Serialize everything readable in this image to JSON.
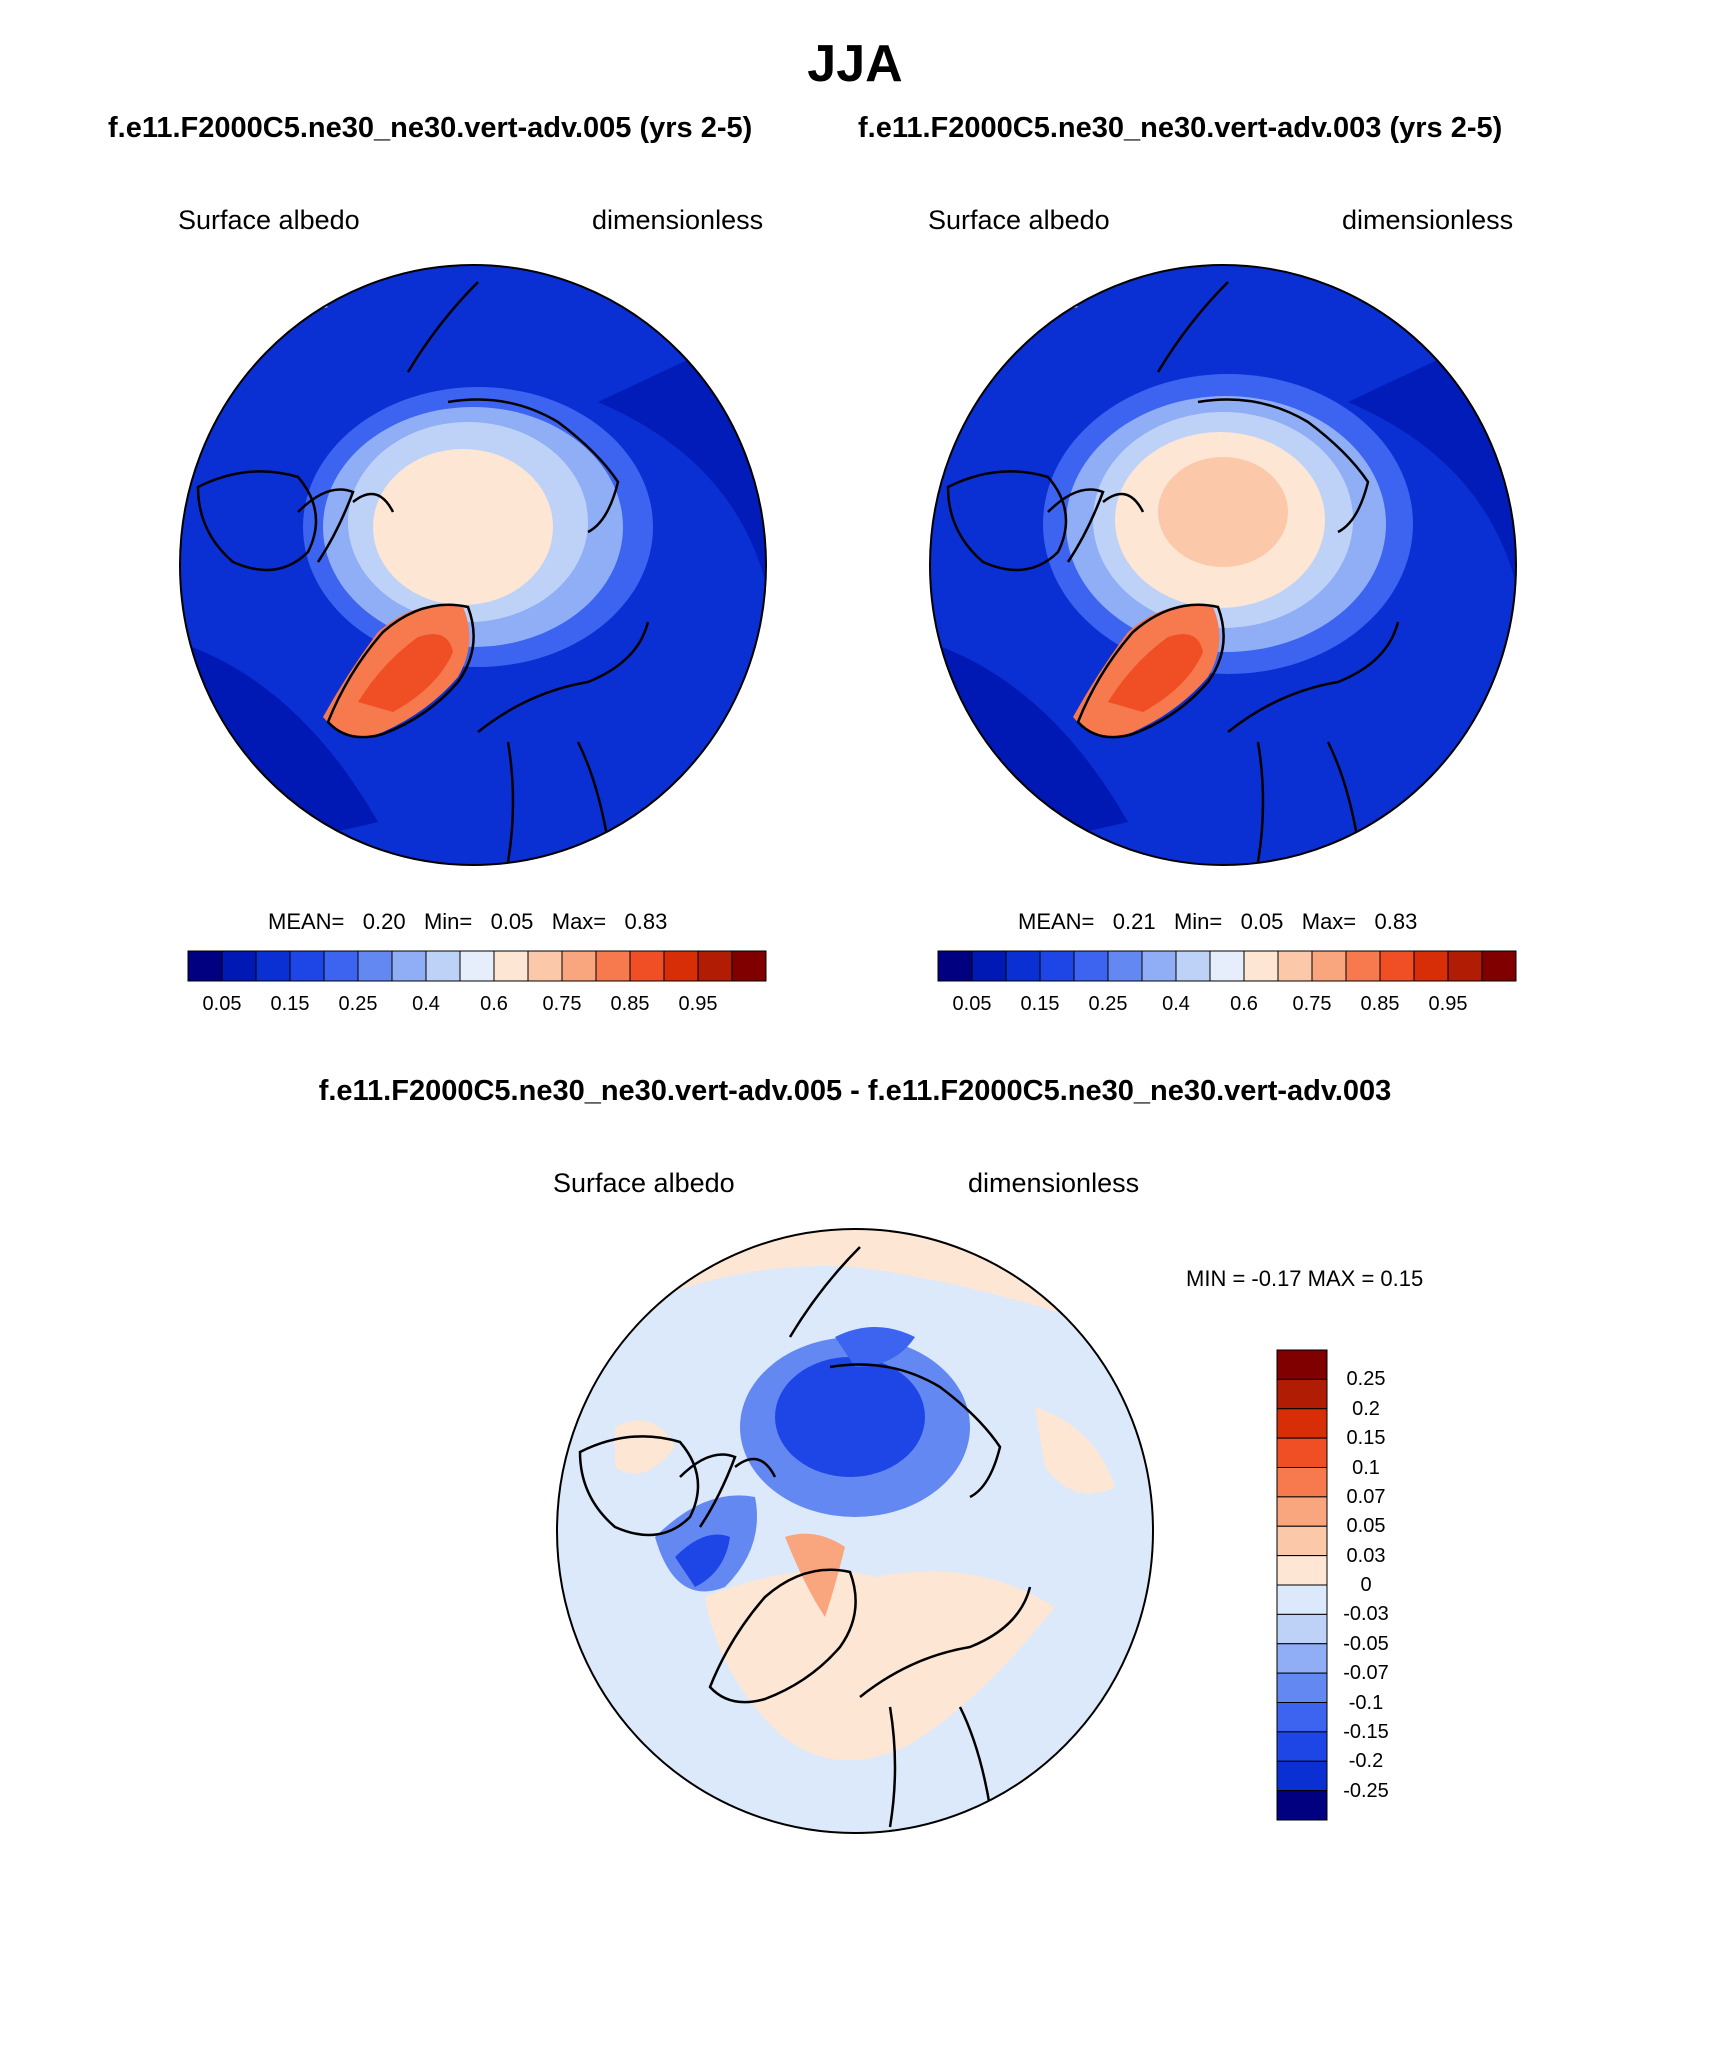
{
  "title": "JJA",
  "top_subtitle_left": "f.e11.F2000C5.ne30_ne30.vert-adv.005 (yrs 2-5)",
  "top_subtitle_right": "f.e11.F2000C5.ne30_ne30.vert-adv.003 (yrs 2-5)",
  "diff_subtitle": "f.e11.F2000C5.ne30_ne30.vert-adv.005 - f.e11.F2000C5.ne30_ne30.vert-adv.003",
  "panels": [
    {
      "id": "case-005",
      "left_label": "Surface albedo",
      "right_label": "dimensionless",
      "stats": {
        "mean_label": "MEAN=",
        "mean": "0.20",
        "min_label": "Min=",
        "min": "0.05",
        "max_label": "Max=",
        "max": "0.83"
      }
    },
    {
      "id": "case-003",
      "left_label": "Surface albedo",
      "right_label": "dimensionless",
      "stats": {
        "mean_label": "MEAN=",
        "mean": "0.21",
        "min_label": "Min=",
        "min": "0.05",
        "max_label": "Max=",
        "max": "0.83"
      }
    },
    {
      "id": "difference",
      "left_label": "Surface albedo",
      "right_label": "dimensionless",
      "stats_text": "MIN =  -0.17 MAX =   0.15"
    }
  ],
  "colorbar_abs": {
    "colors": [
      "#000080",
      "#0018b4",
      "#0a2fd2",
      "#1e46e6",
      "#3c64f0",
      "#6488f2",
      "#90aef5",
      "#bed2f8",
      "#e6eefc",
      "#fde6d4",
      "#fcc8aa",
      "#f9a57e",
      "#f67a4e",
      "#f04e24",
      "#d82e08",
      "#b01c04",
      "#800000"
    ],
    "tick_labels": [
      "0.05",
      "0.15",
      "0.25",
      "0.4",
      "0.6",
      "0.75",
      "0.85",
      "0.95"
    ]
  },
  "colorbar_diff": {
    "colors": [
      "#800000",
      "#b01c04",
      "#d82e08",
      "#f04e24",
      "#f67a4e",
      "#f9a57e",
      "#fcc8aa",
      "#fde6d4",
      "#dce9fb",
      "#bed2f8",
      "#90aef5",
      "#6488f2",
      "#3c64f0",
      "#1e46e6",
      "#0a2fd2",
      "#000080"
    ],
    "tick_labels": [
      "0.25",
      "0.2",
      "0.15",
      "0.1",
      "0.07",
      "0.05",
      "0.03",
      "0",
      "-0.03",
      "-0.05",
      "-0.07",
      "-0.1",
      "-0.15",
      "-0.2",
      "-0.25"
    ]
  },
  "map_colors": {
    "ocean_abs": "#0a2fd2",
    "ocean_abs_dark": "#0018b4",
    "ice_light": "#bed2f8",
    "ice_lighter": "#e6eefc",
    "ice_peach": "#fde6d4",
    "ice_peach2": "#fcc8aa",
    "greenland_outer": "#f67a4e",
    "greenland_inner": "#f04e24",
    "diff_bg": "#dce9fb",
    "diff_pos": "#fde6d4",
    "diff_pos2": "#f9a57e",
    "diff_neg": "#3c64f0",
    "diff_neg2": "#1e46e6",
    "coast": "#000000"
  }
}
